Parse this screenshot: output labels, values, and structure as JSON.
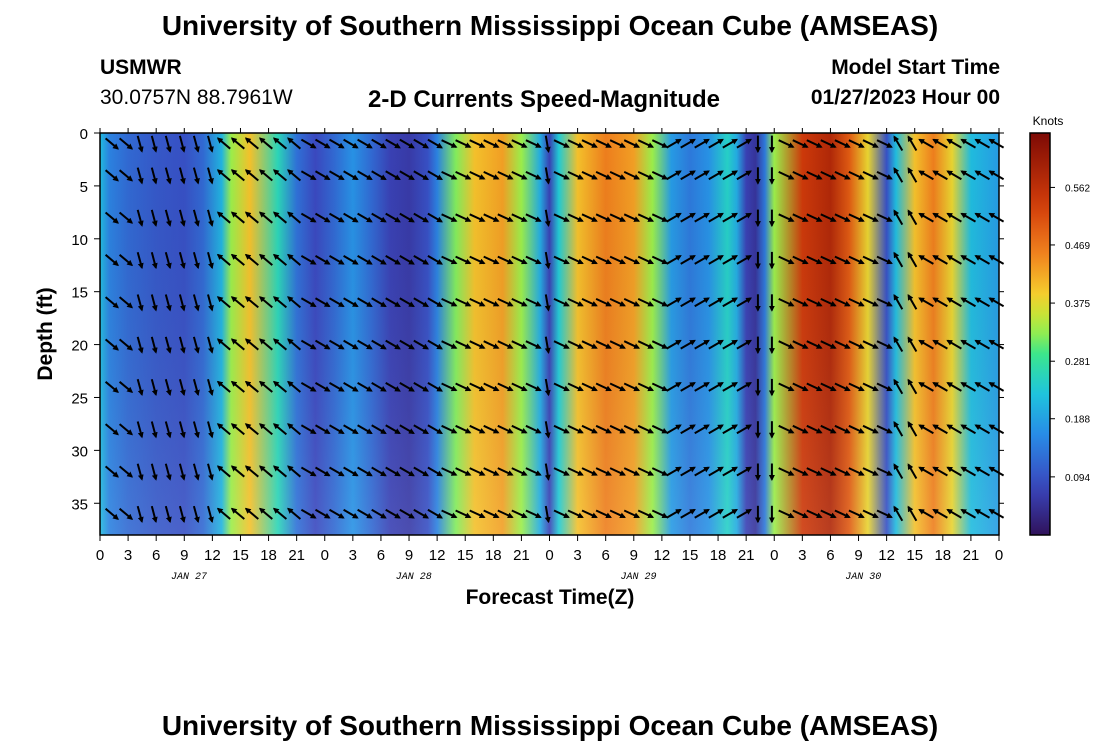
{
  "header": {
    "title": "University of Southern Mississippi Ocean Cube (AMSEAS)",
    "station": "USMWR",
    "coords": "30.0757N  88.7961W",
    "chart_title": "2-D Currents Speed-Magnitude",
    "model_start_label": "Model Start Time",
    "model_start_value": "01/27/2023 Hour 00"
  },
  "footer": {
    "title": "University of Southern Mississippi Ocean Cube (AMSEAS)"
  },
  "chart_data": {
    "type": "heatmap",
    "title": "2-D Currents Speed-Magnitude",
    "xlabel": "Forecast Time(Z)",
    "ylabel": "Depth (ft)",
    "x_unit": "hours since 01/27/2023 00Z",
    "xlim": [
      0,
      96
    ],
    "ylim": [
      0,
      38
    ],
    "x_tick_labels": [
      "0",
      "3",
      "6",
      "9",
      "12",
      "15",
      "18",
      "21",
      "0",
      "3",
      "6",
      "9",
      "12",
      "15",
      "18",
      "21",
      "0",
      "3",
      "6",
      "9",
      "12",
      "15",
      "18",
      "21",
      "0",
      "3",
      "6",
      "9",
      "12",
      "15",
      "18",
      "21",
      "0"
    ],
    "date_labels": [
      {
        "hour": 9.5,
        "label": "JAN 27"
      },
      {
        "hour": 33.5,
        "label": "JAN 28"
      },
      {
        "hour": 57.5,
        "label": "JAN 29"
      },
      {
        "hour": 81.5,
        "label": "JAN 30"
      }
    ],
    "y_ticks": [
      0,
      5,
      10,
      15,
      20,
      25,
      30,
      35
    ],
    "colorbar": {
      "unit": "Knots",
      "range": [
        0,
        0.65
      ],
      "tick_values": [
        0.094,
        0.188,
        0.281,
        0.375,
        0.469,
        0.562
      ],
      "tick_labels": [
        "0.094",
        "0.188",
        "0.281",
        "0.375",
        "0.469",
        "0.562"
      ]
    },
    "speed_profile": {
      "description": "depth-averaged speed (knots) by forecast hour",
      "hours": [
        0,
        1,
        3,
        6,
        9,
        11,
        13,
        14,
        16,
        19,
        21,
        23,
        25,
        27,
        29,
        31,
        33,
        35,
        36,
        38,
        40,
        43,
        45,
        47,
        48,
        49,
        51,
        54,
        57,
        59,
        61,
        63,
        65,
        67,
        68,
        69,
        70,
        71,
        72,
        75,
        78,
        80,
        82,
        84,
        85,
        87,
        89,
        91,
        93,
        96
      ],
      "speeds": [
        0.22,
        0.15,
        0.12,
        0.1,
        0.09,
        0.12,
        0.21,
        0.33,
        0.4,
        0.26,
        0.13,
        0.08,
        0.12,
        0.17,
        0.12,
        0.07,
        0.06,
        0.09,
        0.15,
        0.32,
        0.4,
        0.43,
        0.33,
        0.2,
        0.07,
        0.24,
        0.4,
        0.46,
        0.43,
        0.33,
        0.18,
        0.14,
        0.17,
        0.25,
        0.2,
        0.07,
        0.05,
        0.14,
        0.33,
        0.54,
        0.58,
        0.5,
        0.38,
        0.09,
        0.22,
        0.4,
        0.46,
        0.38,
        0.22,
        0.18
      ]
    },
    "vectors": {
      "description": "current direction (degrees clockwise from north) at rows 1,4,8,12,16,20,24,28,32,36 ft",
      "depths": [
        1,
        4,
        8,
        12,
        16,
        20,
        24,
        28,
        32,
        36
      ],
      "hour_step": 1.5,
      "directions": [
        {
          "hour_start": 0,
          "hour_end": 4,
          "deg": 130
        },
        {
          "hour_start": 4,
          "hour_end": 13,
          "deg": 165
        },
        {
          "hour_start": 13,
          "hour_end": 22,
          "deg": 310
        },
        {
          "hour_start": 22,
          "hour_end": 36,
          "deg": 120
        },
        {
          "hour_start": 36,
          "hour_end": 47,
          "deg": 115
        },
        {
          "hour_start": 47,
          "hour_end": 49,
          "deg": 170
        },
        {
          "hour_start": 49,
          "hour_end": 61,
          "deg": 115
        },
        {
          "hour_start": 61,
          "hour_end": 69,
          "deg": 60
        },
        {
          "hour_start": 69,
          "hour_end": 72,
          "deg": 180
        },
        {
          "hour_start": 72,
          "hour_end": 84,
          "deg": 115
        },
        {
          "hour_start": 84,
          "hour_end": 88,
          "deg": 330
        },
        {
          "hour_start": 88,
          "hour_end": 96,
          "deg": 300
        }
      ]
    }
  }
}
